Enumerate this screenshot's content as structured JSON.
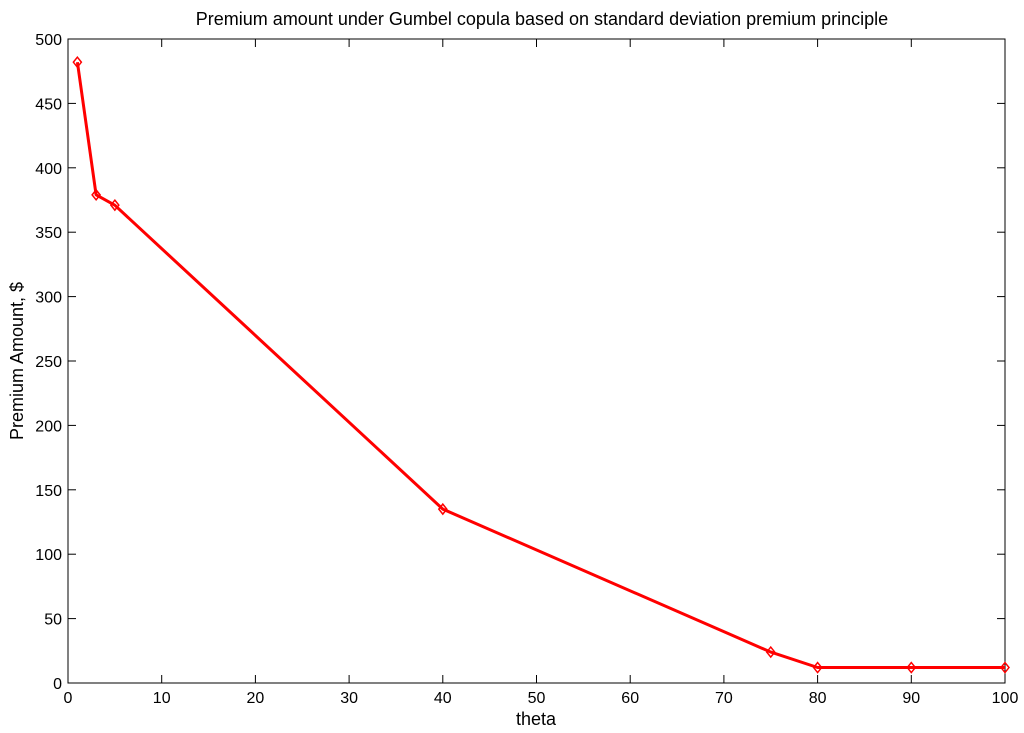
{
  "chart_data": {
    "type": "line",
    "title": "Premium amount under Gumbel copula based on standard deviation premium principle",
    "xlabel": "theta",
    "ylabel": "Premium Amount, $",
    "xlim": [
      0,
      100
    ],
    "ylim": [
      0,
      500
    ],
    "xticks": [
      "0",
      "10",
      "20",
      "30",
      "40",
      "50",
      "60",
      "70",
      "80",
      "90",
      "100"
    ],
    "yticks": [
      "0",
      "50",
      "100",
      "150",
      "200",
      "250",
      "300",
      "350",
      "400",
      "450",
      "500"
    ],
    "grid": false,
    "series": [
      {
        "color": "#ff0000",
        "marker": "diamond",
        "points": [
          {
            "x": 1,
            "y": 482
          },
          {
            "x": 3,
            "y": 379
          },
          {
            "x": 5,
            "y": 371
          },
          {
            "x": 40,
            "y": 135
          },
          {
            "x": 75,
            "y": 24
          },
          {
            "x": 80,
            "y": 12
          },
          {
            "x": 90,
            "y": 12
          },
          {
            "x": 100,
            "y": 12
          }
        ]
      }
    ]
  }
}
